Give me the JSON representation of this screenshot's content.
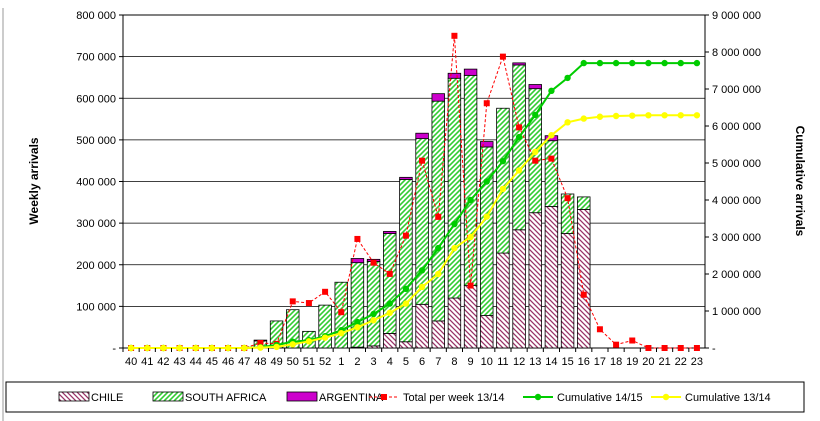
{
  "chart_data": {
    "type": "bar",
    "categories": [
      "40",
      "41",
      "42",
      "43",
      "44",
      "45",
      "46",
      "47",
      "48",
      "49",
      "50",
      "51",
      "52",
      "1",
      "2",
      "3",
      "4",
      "5",
      "6",
      "7",
      "8",
      "9",
      "10",
      "11",
      "12",
      "13",
      "14",
      "15",
      "16",
      "17",
      "18",
      "19",
      "20",
      "21",
      "22",
      "23"
    ],
    "ylabel": "Weekly arrivals",
    "y2label": "Cumulative arrivals",
    "ylim": [
      0,
      800000
    ],
    "y2lim": [
      0,
      9000000
    ],
    "yticks": [
      0,
      100000,
      200000,
      300000,
      400000,
      500000,
      600000,
      700000,
      800000
    ],
    "ytick_labels": [
      "-",
      "100 000",
      "200 000",
      "300 000",
      "400 000",
      "500 000",
      "600 000",
      "700 000",
      "800 000"
    ],
    "y2ticks": [
      0,
      1000000,
      2000000,
      3000000,
      4000000,
      5000000,
      6000000,
      7000000,
      8000000,
      9000000
    ],
    "y2tick_labels": [
      "-",
      "1 000 000",
      "2 000 000",
      "3 000 000",
      "4 000 000",
      "5 000 000",
      "6 000 000",
      "7 000 000",
      "8 000 000",
      "9 000 000"
    ],
    "grid": "horizontal",
    "legend_position": "bottom",
    "stacked_series": [
      {
        "name": "CHILE",
        "color": "#993366",
        "pattern": "diagonal-down",
        "values": [
          0,
          0,
          0,
          0,
          0,
          0,
          0,
          0,
          0,
          0,
          0,
          0,
          0,
          0,
          2000,
          5000,
          35000,
          15000,
          105000,
          65000,
          120000,
          150000,
          78000,
          228000,
          284000,
          325000,
          340000,
          275000,
          333000,
          0,
          0,
          0,
          0,
          0,
          0,
          0
        ]
      },
      {
        "name": "SOUTH AFRICA",
        "color": "#33CC33",
        "pattern": "diagonal-up",
        "values": [
          0,
          0,
          0,
          0,
          0,
          0,
          0,
          0,
          17000,
          65000,
          92000,
          40000,
          103000,
          158000,
          203000,
          203000,
          240000,
          390000,
          398000,
          528000,
          528000,
          505000,
          405000,
          348000,
          396000,
          298000,
          158000,
          95000,
          30000,
          0,
          0,
          0,
          0,
          0,
          0,
          0
        ]
      },
      {
        "name": "ARGENTINA",
        "color": "#CC00CC",
        "pattern": "solid",
        "values": [
          0,
          0,
          0,
          0,
          0,
          0,
          0,
          0,
          2000,
          0,
          0,
          0,
          0,
          0,
          10000,
          5000,
          5000,
          5000,
          13000,
          18000,
          12000,
          15000,
          13000,
          0,
          5000,
          10000,
          12000,
          0,
          0,
          0,
          0,
          0,
          0,
          0,
          0,
          0
        ]
      }
    ],
    "line_series": [
      {
        "name": "Total per week 13/14",
        "axis": "left",
        "color": "#FF0000",
        "dashed": true,
        "marker": "square",
        "values": [
          0,
          0,
          0,
          0,
          0,
          0,
          0,
          0,
          12000,
          10000,
          112000,
          108000,
          135000,
          86000,
          262000,
          205000,
          178000,
          270000,
          450000,
          315000,
          750000,
          150000,
          588000,
          700000,
          530000,
          450000,
          455000,
          360000,
          128000,
          45000,
          8000,
          18000,
          0,
          0,
          0,
          0
        ]
      },
      {
        "name": "Cumulative 14/15",
        "axis": "right",
        "color": "#00CC00",
        "dashed": false,
        "marker": "circle",
        "values": [
          0,
          0,
          0,
          0,
          0,
          0,
          0,
          0,
          20000,
          80000,
          170000,
          210000,
          320000,
          480000,
          700000,
          920000,
          1200000,
          1600000,
          2100000,
          2700000,
          3350000,
          4000000,
          4500000,
          5050000,
          5700000,
          6300000,
          6950000,
          7300000,
          7700000,
          7700000,
          7700000,
          7700000,
          7700000,
          7700000,
          7700000,
          7700000
        ]
      },
      {
        "name": "Cumulative 13/14",
        "axis": "right",
        "color": "#FFFF00",
        "dashed": false,
        "marker": "circle",
        "values": [
          0,
          0,
          0,
          0,
          0,
          0,
          0,
          0,
          10000,
          30000,
          100000,
          180000,
          280000,
          400000,
          560000,
          750000,
          950000,
          1200000,
          1650000,
          2000000,
          2700000,
          3000000,
          3550000,
          4300000,
          4800000,
          5300000,
          5750000,
          6100000,
          6200000,
          6250000,
          6270000,
          6280000,
          6290000,
          6290000,
          6290000,
          6290000
        ]
      }
    ],
    "legend": [
      "CHILE",
      "SOUTH AFRICA",
      "ARGENTINA",
      "Total per week 13/14",
      "Cumulative 14/15",
      "Cumulative 13/14"
    ]
  }
}
